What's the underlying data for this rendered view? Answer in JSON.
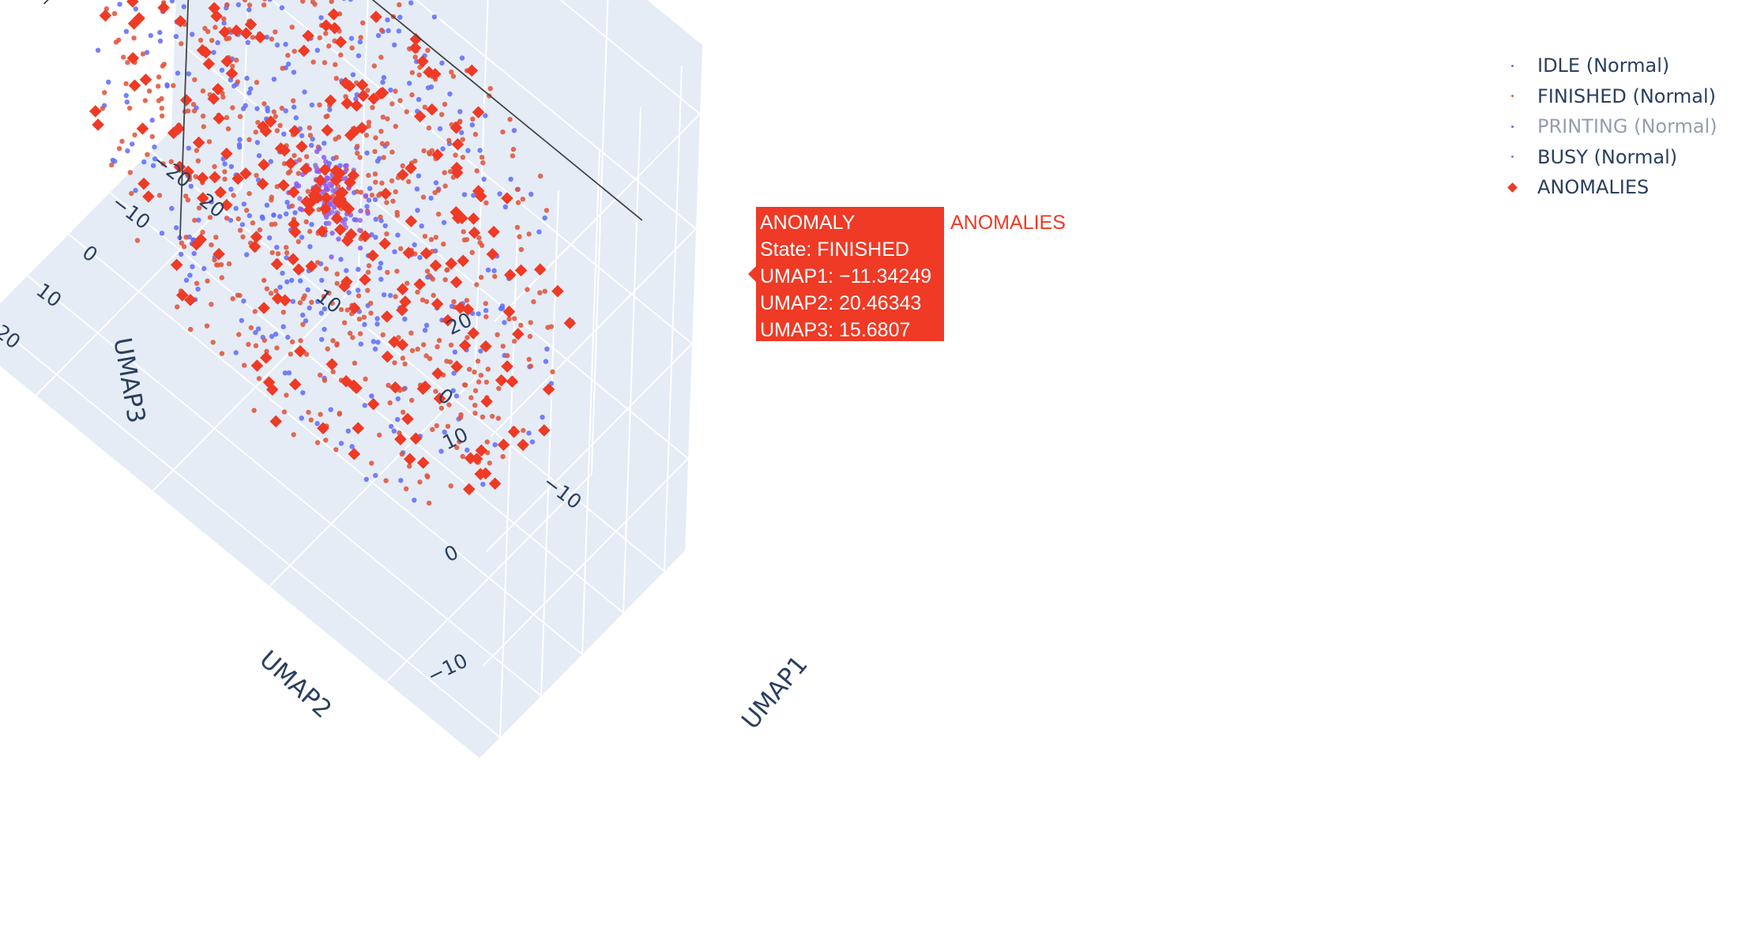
{
  "chart_data": {
    "type": "scatter3d",
    "axes": {
      "x": {
        "title": "UMAP1",
        "ticks": [
          "−20",
          "−10",
          "0",
          "10",
          "20"
        ],
        "tick_values": [
          -20,
          -10,
          0,
          10,
          20
        ],
        "range": [
          -25,
          25
        ]
      },
      "y": {
        "title": "UMAP2",
        "ticks": [
          "−10",
          "0",
          "10",
          "20"
        ],
        "tick_values": [
          -10,
          0,
          10,
          20
        ],
        "range": [
          -18,
          26
        ]
      },
      "z": {
        "title": "UMAP3",
        "ticks": [
          "−10",
          "0",
          "10",
          "20"
        ],
        "tick_values": [
          -10,
          0,
          10,
          20
        ],
        "range": [
          -18,
          26
        ]
      }
    },
    "scene_background": "#e5ecf6",
    "grid": true,
    "legend_position": "top-right",
    "series": [
      {
        "name": "IDLE (Normal)",
        "color": "#636efa",
        "marker": "circle",
        "visible": true
      },
      {
        "name": "FINISHED (Normal)",
        "color": "#e0553c",
        "marker": "circle",
        "visible": true
      },
      {
        "name": "PRINTING (Normal)",
        "color": "#8e5cf0",
        "marker": "circle",
        "visible": true
      },
      {
        "name": "BUSY (Normal)",
        "color": "#9b6fd9",
        "marker": "circle",
        "visible": true
      },
      {
        "name": "ANOMALIES",
        "color": "#ef3a25",
        "marker": "diamond",
        "visible": true
      }
    ],
    "hover": {
      "lines": [
        "ANOMALY",
        "State: FINISHED",
        "UMAP1: −11.34249",
        "UMAP2: 20.46343",
        "UMAP3: 15.6807"
      ],
      "trace_name": "ANOMALIES",
      "point": {
        "x": -11.34249,
        "y": 20.46343,
        "z": 15.6807
      }
    }
  },
  "legend": {
    "items": [
      {
        "label": "IDLE (Normal)",
        "color": "#636efa",
        "symbol": "dot",
        "dimmed": false
      },
      {
        "label": "FINISHED (Normal)",
        "color": "#e0553c",
        "symbol": "dot",
        "dimmed": false
      },
      {
        "label": "PRINTING (Normal)",
        "color": "#8e5cf0",
        "symbol": "dot",
        "dimmed": true
      },
      {
        "label": "BUSY (Normal)",
        "color": "#9b6fd9",
        "symbol": "dot",
        "dimmed": false
      },
      {
        "label": "ANOMALIES",
        "color": "#ef3a25",
        "symbol": "diamond",
        "dimmed": false
      }
    ]
  }
}
